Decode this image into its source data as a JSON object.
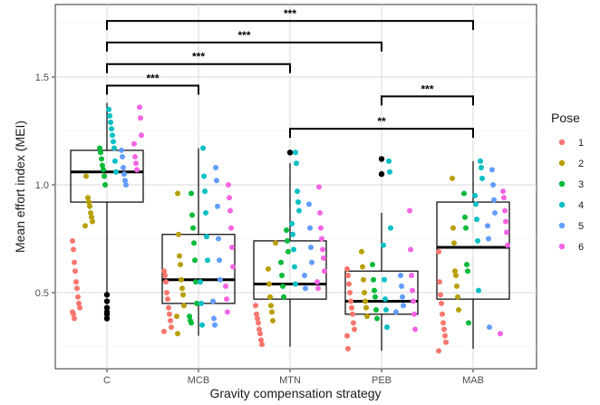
{
  "chart_data": {
    "type": "boxplot",
    "xlabel": "Gravity compensation strategy",
    "ylabel": "Mean effort index (MEI)",
    "categories": [
      "C",
      "MCB",
      "MTN",
      "PEB",
      "MAB"
    ],
    "y_ticks": [
      0.5,
      1.0,
      1.5
    ],
    "y_tick_labels": [
      "0.5",
      "1.0",
      "1.5"
    ],
    "ylim": [
      0.17,
      1.78
    ],
    "grid": true,
    "legend": {
      "title": "Pose",
      "position": "right",
      "entries": [
        {
          "label": "1",
          "color": "#F8766D"
        },
        {
          "label": "2",
          "color": "#B79F00"
        },
        {
          "label": "3",
          "color": "#00BA38"
        },
        {
          "label": "4",
          "color": "#00BFC4"
        },
        {
          "label": "5",
          "color": "#619CFF"
        },
        {
          "label": "6",
          "color": "#F564E3"
        }
      ]
    },
    "boxes": [
      {
        "category": "C",
        "q1": 0.92,
        "median": 1.06,
        "q3": 1.16,
        "whisker_low": 0.5,
        "whisker_high": 1.38,
        "outliers": [
          0.38,
          0.4,
          0.41,
          0.43,
          0.46,
          0.49
        ]
      },
      {
        "category": "MCB",
        "q1": 0.45,
        "median": 0.56,
        "q3": 0.77,
        "whisker_low": 0.3,
        "whisker_high": 1.17,
        "outliers": []
      },
      {
        "category": "MTN",
        "q1": 0.47,
        "median": 0.54,
        "q3": 0.74,
        "whisker_low": 0.25,
        "whisker_high": 1.1,
        "outliers": [
          1.15
        ]
      },
      {
        "category": "PEB",
        "q1": 0.4,
        "median": 0.46,
        "q3": 0.6,
        "whisker_low": 0.23,
        "whisker_high": 0.87,
        "outliers": [
          1.05,
          1.12
        ]
      },
      {
        "category": "MAB",
        "q1": 0.47,
        "median": 0.71,
        "q3": 0.92,
        "whisker_low": 0.24,
        "whisker_high": 1.11,
        "outliers": []
      }
    ],
    "points": {
      "C": [
        [
          1,
          0.74
        ],
        [
          1,
          0.7
        ],
        [
          1,
          0.64
        ],
        [
          1,
          0.6
        ],
        [
          1,
          0.55
        ],
        [
          1,
          0.52
        ],
        [
          1,
          0.48
        ],
        [
          1,
          0.45
        ],
        [
          1,
          0.43
        ],
        [
          1,
          0.41
        ],
        [
          1,
          0.4
        ],
        [
          1,
          0.38
        ],
        [
          2,
          0.94
        ],
        [
          2,
          0.92
        ],
        [
          2,
          0.9
        ],
        [
          2,
          0.87
        ],
        [
          2,
          0.85
        ],
        [
          2,
          0.83
        ],
        [
          2,
          0.81
        ],
        [
          2,
          1.04
        ],
        [
          3,
          1.17
        ],
        [
          3,
          1.15
        ],
        [
          3,
          1.12
        ],
        [
          3,
          1.09
        ],
        [
          3,
          1.07
        ],
        [
          3,
          1.04
        ],
        [
          3,
          1.0
        ],
        [
          4,
          1.35
        ],
        [
          4,
          1.32
        ],
        [
          4,
          1.29
        ],
        [
          4,
          1.26
        ],
        [
          4,
          1.23
        ],
        [
          4,
          1.2
        ],
        [
          4,
          1.17
        ],
        [
          4,
          1.11
        ],
        [
          4,
          1.06
        ],
        [
          5,
          1.16
        ],
        [
          5,
          1.13
        ],
        [
          5,
          1.08
        ],
        [
          5,
          1.05
        ],
        [
          5,
          1.02
        ],
        [
          5,
          1.0
        ],
        [
          6,
          1.36
        ],
        [
          6,
          1.31
        ],
        [
          6,
          1.23
        ],
        [
          6,
          1.19
        ],
        [
          6,
          1.13
        ],
        [
          6,
          1.1
        ],
        [
          6,
          1.07
        ]
      ],
      "MCB": [
        [
          1,
          0.6
        ],
        [
          1,
          0.58
        ],
        [
          1,
          0.55
        ],
        [
          1,
          0.5
        ],
        [
          1,
          0.47
        ],
        [
          1,
          0.43
        ],
        [
          1,
          0.4
        ],
        [
          1,
          0.37
        ],
        [
          1,
          0.34
        ],
        [
          1,
          0.32
        ],
        [
          2,
          0.96
        ],
        [
          2,
          0.77
        ],
        [
          2,
          0.67
        ],
        [
          2,
          0.63
        ],
        [
          2,
          0.56
        ],
        [
          2,
          0.52
        ],
        [
          2,
          0.49
        ],
        [
          2,
          0.44
        ],
        [
          2,
          0.39
        ],
        [
          2,
          0.31
        ],
        [
          3,
          0.96
        ],
        [
          3,
          0.86
        ],
        [
          3,
          0.8
        ],
        [
          3,
          0.73
        ],
        [
          3,
          0.65
        ],
        [
          3,
          0.55
        ],
        [
          3,
          0.45
        ],
        [
          3,
          0.39
        ],
        [
          3,
          0.37
        ],
        [
          3,
          0.36
        ],
        [
          4,
          1.17
        ],
        [
          4,
          1.04
        ],
        [
          4,
          0.97
        ],
        [
          4,
          0.87
        ],
        [
          4,
          0.76
        ],
        [
          4,
          0.65
        ],
        [
          4,
          0.55
        ],
        [
          4,
          0.45
        ],
        [
          4,
          0.35
        ],
        [
          5,
          1.08
        ],
        [
          5,
          1.02
        ],
        [
          5,
          0.9
        ],
        [
          5,
          0.75
        ],
        [
          5,
          0.65
        ],
        [
          5,
          0.56
        ],
        [
          5,
          0.46
        ],
        [
          5,
          0.38
        ],
        [
          5,
          0.35
        ],
        [
          6,
          1.0
        ],
        [
          6,
          0.94
        ],
        [
          6,
          0.88
        ],
        [
          6,
          0.8
        ],
        [
          6,
          0.71
        ],
        [
          6,
          0.62
        ],
        [
          6,
          0.53
        ],
        [
          6,
          0.47
        ],
        [
          6,
          0.41
        ]
      ],
      "MTN": [
        [
          1,
          0.44
        ],
        [
          1,
          0.4
        ],
        [
          1,
          0.38
        ],
        [
          1,
          0.36
        ],
        [
          1,
          0.33
        ],
        [
          1,
          0.31
        ],
        [
          1,
          0.28
        ],
        [
          1,
          0.26
        ],
        [
          2,
          0.73
        ],
        [
          2,
          0.61
        ],
        [
          2,
          0.54
        ],
        [
          2,
          0.48
        ],
        [
          2,
          0.44
        ],
        [
          2,
          0.41
        ],
        [
          2,
          0.37
        ],
        [
          3,
          0.79
        ],
        [
          3,
          0.74
        ],
        [
          3,
          0.69
        ],
        [
          3,
          0.64
        ],
        [
          3,
          0.58
        ],
        [
          3,
          0.53
        ],
        [
          3,
          0.48
        ],
        [
          4,
          1.15
        ],
        [
          4,
          1.1
        ],
        [
          4,
          0.97
        ],
        [
          4,
          0.92
        ],
        [
          4,
          0.88
        ],
        [
          4,
          0.82
        ],
        [
          4,
          0.77
        ],
        [
          4,
          0.7
        ],
        [
          4,
          0.62
        ],
        [
          4,
          0.54
        ],
        [
          5,
          0.91
        ],
        [
          5,
          0.8
        ],
        [
          5,
          0.71
        ],
        [
          5,
          0.64
        ],
        [
          5,
          0.58
        ],
        [
          5,
          0.52
        ],
        [
          6,
          0.99
        ],
        [
          6,
          0.87
        ],
        [
          6,
          0.8
        ],
        [
          6,
          0.75
        ],
        [
          6,
          0.7
        ],
        [
          6,
          0.66
        ],
        [
          6,
          0.6
        ],
        [
          6,
          0.55
        ],
        [
          6,
          0.52
        ]
      ],
      "PEB": [
        [
          1,
          0.61
        ],
        [
          1,
          0.58
        ],
        [
          1,
          0.54
        ],
        [
          1,
          0.5
        ],
        [
          1,
          0.46
        ],
        [
          1,
          0.43
        ],
        [
          1,
          0.4
        ],
        [
          1,
          0.36
        ],
        [
          1,
          0.33
        ],
        [
          1,
          0.3
        ],
        [
          1,
          0.24
        ],
        [
          2,
          0.69
        ],
        [
          2,
          0.62
        ],
        [
          2,
          0.56
        ],
        [
          2,
          0.5
        ],
        [
          2,
          0.46
        ],
        [
          2,
          0.43
        ],
        [
          2,
          0.39
        ],
        [
          3,
          0.63
        ],
        [
          3,
          0.56
        ],
        [
          3,
          0.51
        ],
        [
          3,
          0.48
        ],
        [
          3,
          0.42
        ],
        [
          3,
          0.38
        ],
        [
          4,
          1.11
        ],
        [
          4,
          1.06
        ],
        [
          4,
          0.8
        ],
        [
          4,
          0.72
        ],
        [
          4,
          0.56
        ],
        [
          4,
          0.47
        ],
        [
          4,
          0.42
        ],
        [
          4,
          0.34
        ],
        [
          5,
          0.58
        ],
        [
          5,
          0.53
        ],
        [
          5,
          0.48
        ],
        [
          5,
          0.44
        ],
        [
          5,
          0.41
        ],
        [
          6,
          0.88
        ],
        [
          6,
          0.7
        ],
        [
          6,
          0.58
        ],
        [
          6,
          0.51
        ],
        [
          6,
          0.46
        ],
        [
          6,
          0.4
        ],
        [
          6,
          0.33
        ]
      ],
      "MAB": [
        [
          1,
          0.69
        ],
        [
          1,
          0.55
        ],
        [
          1,
          0.49
        ],
        [
          1,
          0.45
        ],
        [
          1,
          0.4
        ],
        [
          1,
          0.36
        ],
        [
          1,
          0.33
        ],
        [
          1,
          0.3
        ],
        [
          1,
          0.27
        ],
        [
          1,
          0.23
        ],
        [
          2,
          1.03
        ],
        [
          2,
          0.8
        ],
        [
          2,
          0.73
        ],
        [
          2,
          0.6
        ],
        [
          2,
          0.58
        ],
        [
          2,
          0.53
        ],
        [
          2,
          0.48
        ],
        [
          2,
          0.42
        ],
        [
          3,
          0.96
        ],
        [
          3,
          0.85
        ],
        [
          3,
          0.8
        ],
        [
          3,
          0.63
        ],
        [
          3,
          0.6
        ],
        [
          3,
          0.36
        ],
        [
          4,
          1.11
        ],
        [
          4,
          1.08
        ],
        [
          4,
          1.03
        ],
        [
          4,
          0.95
        ],
        [
          4,
          0.91
        ],
        [
          4,
          0.84
        ],
        [
          4,
          0.74
        ],
        [
          4,
          0.51
        ],
        [
          5,
          1.07
        ],
        [
          5,
          1.0
        ],
        [
          5,
          0.93
        ],
        [
          5,
          0.87
        ],
        [
          5,
          0.81
        ],
        [
          5,
          0.75
        ],
        [
          5,
          0.34
        ],
        [
          6,
          0.97
        ],
        [
          6,
          0.94
        ],
        [
          6,
          0.88
        ],
        [
          6,
          0.83
        ],
        [
          6,
          0.78
        ],
        [
          6,
          0.72
        ],
        [
          6,
          0.31
        ]
      ]
    },
    "significance": [
      {
        "from": "C",
        "to": "MCB",
        "y": 1.46,
        "label": "***"
      },
      {
        "from": "C",
        "to": "MTN",
        "y": 1.56,
        "label": "***"
      },
      {
        "from": "C",
        "to": "PEB",
        "y": 1.66,
        "label": "***"
      },
      {
        "from": "C",
        "to": "MAB",
        "y": 1.76,
        "label": "***"
      },
      {
        "from": "PEB",
        "to": "MAB",
        "y": 1.41,
        "label": "***"
      },
      {
        "from": "MTN",
        "to": "MAB",
        "y": 1.26,
        "label": "**"
      }
    ]
  }
}
